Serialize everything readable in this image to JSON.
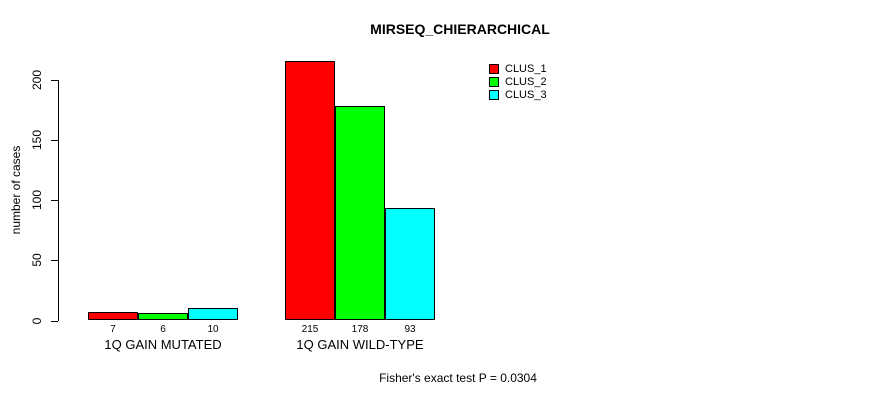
{
  "chart_data": {
    "type": "bar",
    "title": "MIRSEQ_CHIERARCHICAL",
    "xlabel": "",
    "ylabel": "number of cases",
    "ylim": [
      0,
      200
    ],
    "yticks": [
      0,
      50,
      100,
      150,
      200
    ],
    "grid": false,
    "legend_position": "top-right",
    "categories": [
      "1Q GAIN MUTATED",
      "1Q GAIN WILD-TYPE"
    ],
    "series": [
      {
        "name": "CLUS_1",
        "color": "#ff0000",
        "values": [
          7,
          215
        ]
      },
      {
        "name": "CLUS_2",
        "color": "#00ff00",
        "values": [
          6,
          178
        ]
      },
      {
        "name": "CLUS_3",
        "color": "#00ffff",
        "values": [
          10,
          93
        ]
      }
    ],
    "bar_value_labels": [
      [
        "7",
        "6",
        "10"
      ],
      [
        "215",
        "178",
        "93"
      ]
    ],
    "annotation": "Fisher's exact test P = 0.0304",
    "colors": {
      "background": "#ffffff",
      "axis": "#000000",
      "text": "#000000"
    }
  }
}
